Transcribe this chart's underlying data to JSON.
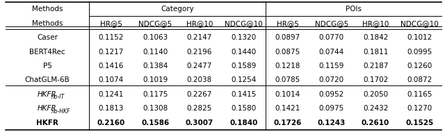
{
  "col_headers_top": [
    "Category",
    "POIs"
  ],
  "col_headers_mid": [
    "Methods",
    "HR@5",
    "NDCG@5",
    "HR@10",
    "NDCG@10",
    "HR@5",
    "NDCG@5",
    "HR@10",
    "NDCG@10"
  ],
  "rows": [
    {
      "method": "Caser",
      "italic": false,
      "bold": false,
      "sub": null,
      "vals": [
        "0.1152",
        "0.1063",
        "0.2147",
        "0.1320",
        "0.0897",
        "0.0770",
        "0.1842",
        "0.1012"
      ]
    },
    {
      "method": "BERT4Rec",
      "italic": false,
      "bold": false,
      "sub": null,
      "vals": [
        "0.1217",
        "0.1140",
        "0.2196",
        "0.1440",
        "0.0875",
        "0.0744",
        "0.1811",
        "0.0995"
      ]
    },
    {
      "method": "P5",
      "italic": false,
      "bold": false,
      "sub": null,
      "vals": [
        "0.1416",
        "0.1384",
        "0.2477",
        "0.1589",
        "0.1218",
        "0.1159",
        "0.2187",
        "0.1260"
      ]
    },
    {
      "method": "ChatGLM-6B",
      "italic": false,
      "bold": false,
      "sub": null,
      "vals": [
        "0.1074",
        "0.1019",
        "0.2038",
        "0.1254",
        "0.0785",
        "0.0720",
        "0.1702",
        "0.0872"
      ]
    },
    {
      "method": "HKFR",
      "italic": true,
      "bold": false,
      "sub": "no-IT",
      "vals": [
        "0.1241",
        "0.1175",
        "0.2267",
        "0.1415",
        "0.1014",
        "0.0952",
        "0.2050",
        "0.1165"
      ]
    },
    {
      "method": "HKFR",
      "italic": true,
      "bold": false,
      "sub": "no-HKF",
      "vals": [
        "0.1813",
        "0.1308",
        "0.2825",
        "0.1580",
        "0.1421",
        "0.0975",
        "0.2432",
        "0.1270"
      ]
    },
    {
      "method": "HKFR",
      "italic": false,
      "bold": true,
      "sub": null,
      "vals": [
        "0.2160",
        "0.1586",
        "0.3007",
        "0.1840",
        "0.1726",
        "0.1243",
        "0.2610",
        "0.1525"
      ]
    }
  ],
  "bg_color": "#ffffff",
  "font_size": 7.5,
  "sub_font_size": 5.5
}
